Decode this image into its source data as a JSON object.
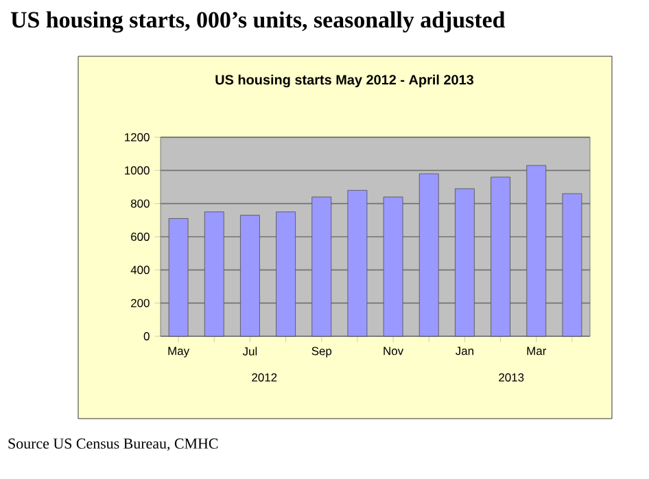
{
  "chart_data": {
    "type": "bar",
    "title": "US housing starts, 000’s units, seasonally adjusted",
    "subtitle": "US housing starts May 2012 - April 2013",
    "categories": [
      "May",
      null,
      "Jul",
      null,
      "Sep",
      null,
      "Nov",
      null,
      "Jan",
      null,
      "Mar",
      null
    ],
    "values": [
      710,
      750,
      730,
      750,
      840,
      880,
      840,
      980,
      890,
      960,
      1030,
      860
    ],
    "color": "#9999ff",
    "ylim": [
      0,
      1200
    ],
    "yticks": [
      0,
      200,
      400,
      600,
      800,
      1000,
      1200
    ],
    "grid": "y",
    "annotations": [
      "2012",
      "2013",
      "Source US Census Bureau, CMHC"
    ]
  }
}
